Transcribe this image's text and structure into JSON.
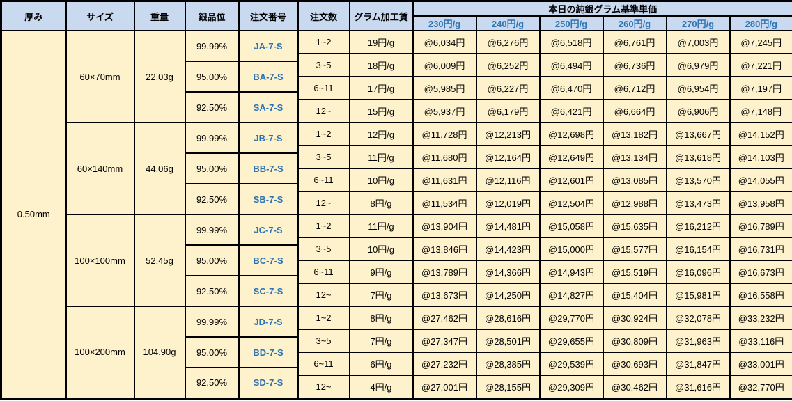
{
  "table": {
    "headers": {
      "thickness": "厚み",
      "size": "サイズ",
      "weight": "重量",
      "purity": "銀品位",
      "order_no": "注文番号",
      "order_qty": "注文数",
      "gram_fee": "グラム加工賃",
      "price_group": "本日の純銀グラム基準単価",
      "price_cols": [
        "230円/g",
        "240円/g",
        "250円/g",
        "260円/g",
        "270円/g",
        "280円/g"
      ]
    },
    "thickness": "0.50mm",
    "blocks": [
      {
        "size": "60×70mm",
        "weight": "22.03g",
        "purities": [
          {
            "purity": "99.99%",
            "order_no": "JA-7-S"
          },
          {
            "purity": "95.00%",
            "order_no": "BA-7-S"
          },
          {
            "purity": "92.50%",
            "order_no": "SA-7-S"
          }
        ],
        "rows": [
          {
            "qty": "1~2",
            "fee": "19円/g",
            "prices": [
              "@6,034円",
              "@6,276円",
              "@6,518円",
              "@6,761円",
              "@7,003円",
              "@7,245円"
            ]
          },
          {
            "qty": "3~5",
            "fee": "18円/g",
            "prices": [
              "@6,009円",
              "@6,252円",
              "@6,494円",
              "@6,736円",
              "@6,979円",
              "@7,221円"
            ]
          },
          {
            "qty": "6~11",
            "fee": "17円/g",
            "prices": [
              "@5,985円",
              "@6,227円",
              "@6,470円",
              "@6,712円",
              "@6,954円",
              "@7,197円"
            ]
          },
          {
            "qty": "12~",
            "fee": "15円/g",
            "prices": [
              "@5,937円",
              "@6,179円",
              "@6,421円",
              "@6,664円",
              "@6,906円",
              "@7,148円"
            ]
          }
        ]
      },
      {
        "size": "60×140mm",
        "weight": "44.06g",
        "purities": [
          {
            "purity": "99.99%",
            "order_no": "JB-7-S"
          },
          {
            "purity": "95.00%",
            "order_no": "BB-7-S"
          },
          {
            "purity": "92.50%",
            "order_no": "SB-7-S"
          }
        ],
        "rows": [
          {
            "qty": "1~2",
            "fee": "12円/g",
            "prices": [
              "@11,728円",
              "@12,213円",
              "@12,698円",
              "@13,182円",
              "@13,667円",
              "@14,152円"
            ]
          },
          {
            "qty": "3~5",
            "fee": "11円/g",
            "prices": [
              "@11,680円",
              "@12,164円",
              "@12,649円",
              "@13,134円",
              "@13,618円",
              "@14,103円"
            ]
          },
          {
            "qty": "6~11",
            "fee": "10円/g",
            "prices": [
              "@11,631円",
              "@12,116円",
              "@12,601円",
              "@13,085円",
              "@13,570円",
              "@14,055円"
            ]
          },
          {
            "qty": "12~",
            "fee": "8円/g",
            "prices": [
              "@11,534円",
              "@12,019円",
              "@12,504円",
              "@12,988円",
              "@13,473円",
              "@13,958円"
            ]
          }
        ]
      },
      {
        "size": "100×100mm",
        "weight": "52.45g",
        "purities": [
          {
            "purity": "99.99%",
            "order_no": "JC-7-S"
          },
          {
            "purity": "95.00%",
            "order_no": "BC-7-S"
          },
          {
            "purity": "92.50%",
            "order_no": "SC-7-S"
          }
        ],
        "rows": [
          {
            "qty": "1~2",
            "fee": "11円/g",
            "prices": [
              "@13,904円",
              "@14,481円",
              "@15,058円",
              "@15,635円",
              "@16,212円",
              "@16,789円"
            ]
          },
          {
            "qty": "3~5",
            "fee": "10円/g",
            "prices": [
              "@13,846円",
              "@14,423円",
              "@15,000円",
              "@15,577円",
              "@16,154円",
              "@16,731円"
            ]
          },
          {
            "qty": "6~11",
            "fee": "9円/g",
            "prices": [
              "@13,789円",
              "@14,366円",
              "@14,943円",
              "@15,519円",
              "@16,096円",
              "@16,673円"
            ]
          },
          {
            "qty": "12~",
            "fee": "7円/g",
            "prices": [
              "@13,673円",
              "@14,250円",
              "@14,827円",
              "@15,404円",
              "@15,981円",
              "@16,558円"
            ]
          }
        ]
      },
      {
        "size": "100×200mm",
        "weight": "104.90g",
        "purities": [
          {
            "purity": "99.99%",
            "order_no": "JD-7-S"
          },
          {
            "purity": "95.00%",
            "order_no": "BD-7-S"
          },
          {
            "purity": "92.50%",
            "order_no": "SD-7-S"
          }
        ],
        "rows": [
          {
            "qty": "1~2",
            "fee": "8円/g",
            "prices": [
              "@27,462円",
              "@28,616円",
              "@29,770円",
              "@30,924円",
              "@32,078円",
              "@33,232円"
            ]
          },
          {
            "qty": "3~5",
            "fee": "7円/g",
            "prices": [
              "@27,347円",
              "@28,501円",
              "@29,655円",
              "@30,809円",
              "@31,963円",
              "@33,116円"
            ]
          },
          {
            "qty": "6~11",
            "fee": "6円/g",
            "prices": [
              "@27,232円",
              "@28,385円",
              "@29,539円",
              "@30,693円",
              "@31,847円",
              "@33,001円"
            ]
          },
          {
            "qty": "12~",
            "fee": "4円/g",
            "prices": [
              "@27,001円",
              "@28,155円",
              "@29,309円",
              "@30,462円",
              "@31,616円",
              "@32,770円"
            ]
          }
        ]
      }
    ],
    "colors": {
      "header_fill": "#C9DAF0",
      "cell_fill": "#FDF2CC",
      "accent_blue_text": "#2E74B5",
      "border": "#000000"
    }
  }
}
